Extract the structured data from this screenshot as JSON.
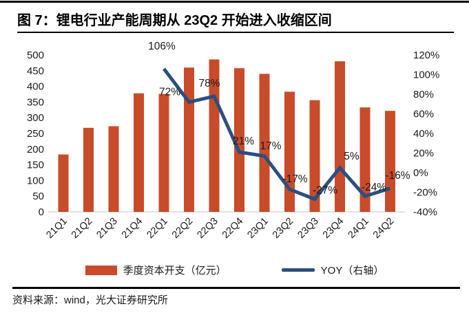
{
  "title": "图 7：锂电行业产能周期从 23Q2 开始进入收缩区间",
  "source": "资料来源：wind，光大证券研究所",
  "colors": {
    "bar": "#C84B2A",
    "line": "#2B4F81",
    "axis_baseline": "#D9D9D9",
    "tick_text": "#1a1a1a",
    "label_text": "#1a1a1a"
  },
  "chart_data": {
    "type": "bar",
    "categories": [
      "21Q1",
      "21Q2",
      "21Q3",
      "21Q4",
      "22Q1",
      "22Q2",
      "22Q3",
      "22Q4",
      "23Q1",
      "23Q2",
      "23Q3",
      "23Q4",
      "24Q1",
      "24Q2"
    ],
    "series": [
      {
        "name": "季度资本开支（亿元）",
        "type": "bar",
        "axis": "left",
        "values": [
          183,
          268,
          273,
          378,
          376,
          460,
          486,
          458,
          440,
          383,
          356,
          480,
          333,
          322
        ]
      },
      {
        "name": "YOY（右轴）",
        "type": "line",
        "axis": "right",
        "values": [
          null,
          null,
          null,
          null,
          106,
          72,
          78,
          21,
          17,
          -17,
          -27,
          5,
          -24,
          -16
        ],
        "point_labels": [
          "106%",
          "72%",
          "78%",
          "21%",
          "17%",
          "-17%",
          "-27%",
          "5%",
          "-24%",
          "-16%"
        ]
      }
    ],
    "left_axis": {
      "min": 0,
      "max": 500,
      "ticks": [
        "500",
        "450",
        "400",
        "350",
        "300",
        "250",
        "200",
        "150",
        "100",
        "50",
        "0"
      ]
    },
    "right_axis": {
      "min": -40,
      "max": 120,
      "ticks": [
        "120%",
        "100%",
        "80%",
        "60%",
        "40%",
        "20%",
        "0%",
        "-20%",
        "-40%"
      ]
    },
    "grid": "off",
    "legend_position": "bottom",
    "legend": [
      {
        "label": "季度资本开支（亿元）",
        "swatch": "bar"
      },
      {
        "label": "YOY（右轴）",
        "swatch": "line"
      }
    ]
  }
}
